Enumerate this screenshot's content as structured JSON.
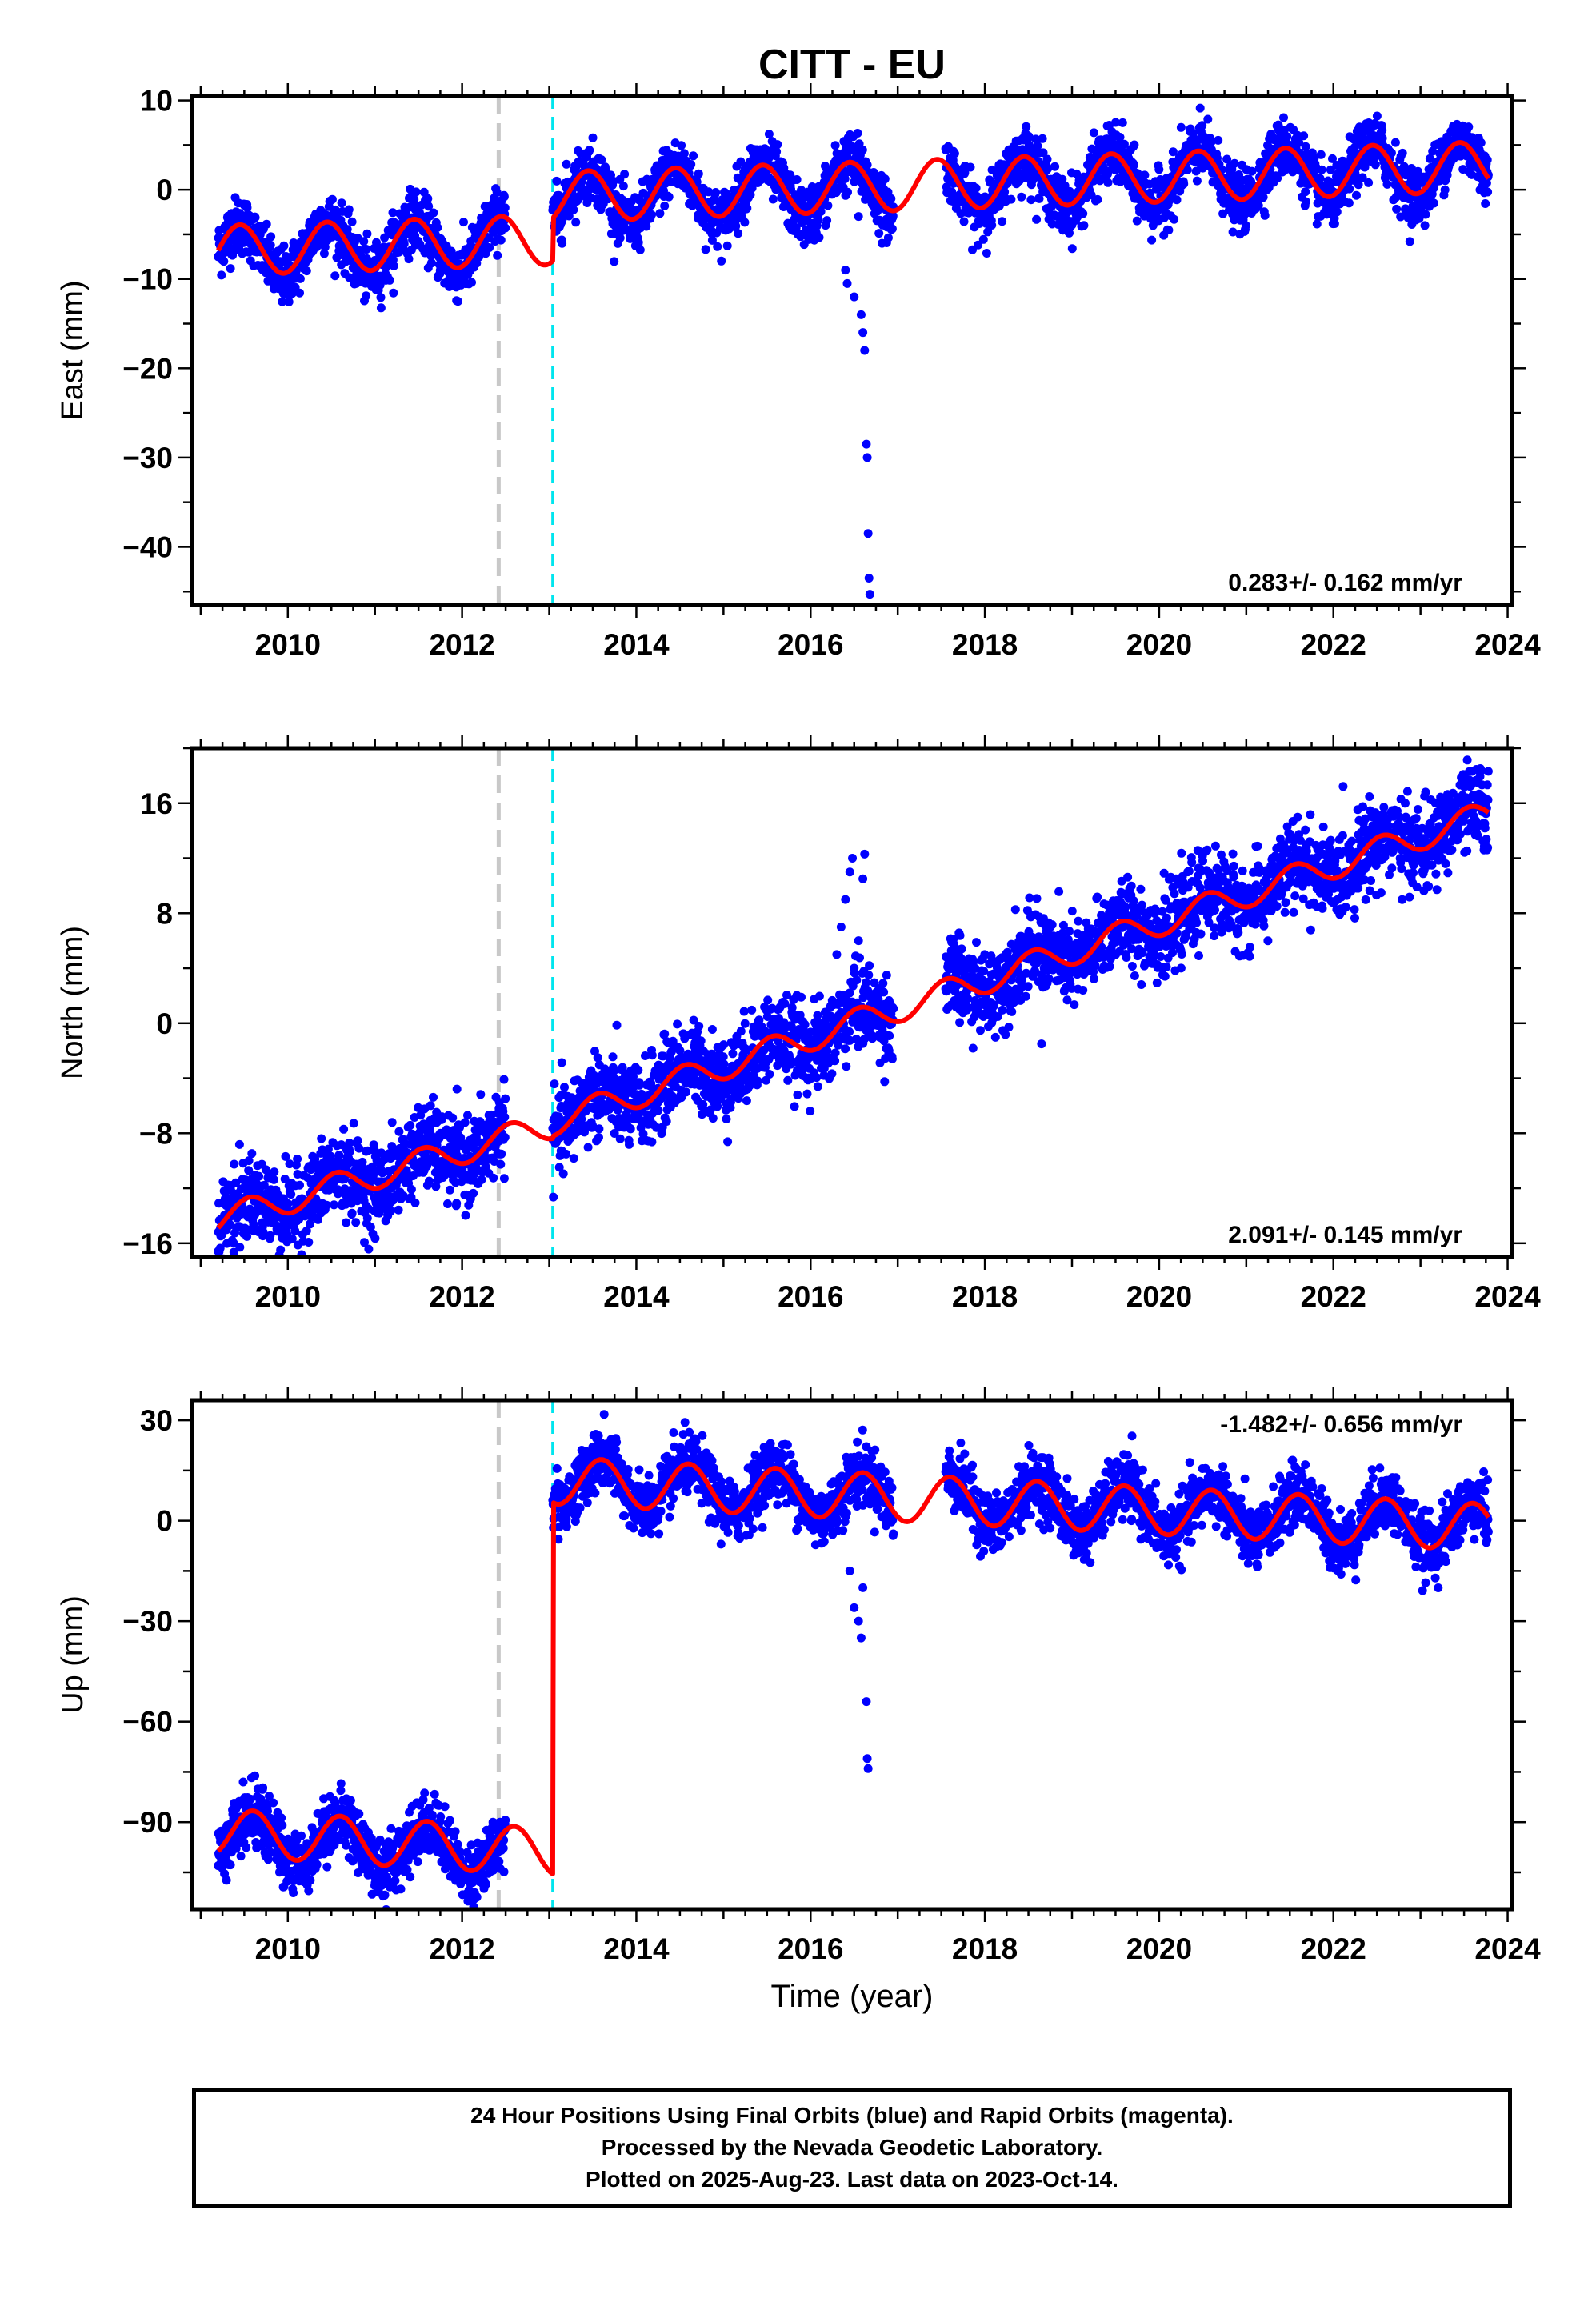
{
  "title": "CITT - EU",
  "xlabel": "Time (year)",
  "colors": {
    "final_orbits": "#0000ff",
    "model": "#ff0000",
    "antenna_change": "#c8c8c8",
    "equipment_change": "#00e5ee"
  },
  "footer": {
    "line1": "24 Hour Positions Using Final Orbits (blue) and Rapid Orbits (magenta).",
    "line2": "Processed by the Nevada Geodetic Laboratory.",
    "line3": "Plotted on 2025-Aug-23. Last data on 2023-Oct-14."
  },
  "chart_data": [
    {
      "type": "scatter",
      "panel": "east",
      "title": "CITT - EU",
      "xlabel": "",
      "ylabel": "East (mm)",
      "xlim": [
        2008.9,
        2024.05
      ],
      "ylim": [
        -46.5,
        10.5
      ],
      "xticks": [
        2010,
        2012,
        2014,
        2016,
        2018,
        2020,
        2022,
        2024
      ],
      "xtick_labels": [
        "2010",
        "2012",
        "2014",
        "2016",
        "2018",
        "2020",
        "2022",
        "2024"
      ],
      "yticks": [
        10,
        0,
        -10,
        -20,
        -30,
        -40
      ],
      "ytick_labels": [
        "10",
        "0",
        "−10",
        "−20",
        "−30",
        "−40"
      ],
      "ytick_minor_step": 5,
      "vlines": [
        2012.42,
        2013.04
      ],
      "rate_label": "0.283+/- 0.162 mm/yr",
      "rate_position": "bottom-right",
      "data_spans": [
        [
          2009.2,
          2012.5
        ],
        [
          2013.04,
          2016.95
        ],
        [
          2017.55,
          2023.78
        ]
      ],
      "series": [
        {
          "role": "final_orbits",
          "kind": "points",
          "trend_segments": [
            [
              2009.2,
              -7.0,
              2012.42,
              -6.0
            ],
            [
              2013.04,
              -1.0,
              2023.78,
              2.5
            ]
          ],
          "annual_amplitude": 3.0,
          "annual_peak": 0.45,
          "scatter": 1.6
        },
        {
          "role": "model",
          "kind": "line",
          "trend_segments": [
            [
              2009.2,
              -6.8,
              2012.42,
              -5.8
            ],
            [
              2013.04,
              -0.8,
              2023.78,
              2.6
            ]
          ],
          "annual_amplitude": 2.8,
          "annual_peak": 0.45
        }
      ],
      "outliers": [
        [
          2016.4,
          -9.0
        ],
        [
          2016.42,
          -10.5
        ],
        [
          2016.5,
          -12.0
        ],
        [
          2016.58,
          -14.0
        ],
        [
          2016.6,
          -16.0
        ],
        [
          2016.62,
          -18.0
        ],
        [
          2016.64,
          -28.5
        ],
        [
          2016.65,
          -30.0
        ],
        [
          2016.66,
          -38.5
        ],
        [
          2016.67,
          -43.5
        ],
        [
          2016.68,
          -45.3
        ],
        [
          2016.55,
          -3.0
        ]
      ]
    },
    {
      "type": "scatter",
      "panel": "north",
      "xlabel": "",
      "ylabel": "North (mm)",
      "xlim": [
        2008.9,
        2024.05
      ],
      "ylim": [
        -17,
        20
      ],
      "xticks": [
        2010,
        2012,
        2014,
        2016,
        2018,
        2020,
        2022,
        2024
      ],
      "xtick_labels": [
        "2010",
        "2012",
        "2014",
        "2016",
        "2018",
        "2020",
        "2022",
        "2024"
      ],
      "yticks": [
        16,
        8,
        0,
        -8,
        -16
      ],
      "ytick_labels": [
        "16",
        "8",
        "0",
        "−8",
        "−16"
      ],
      "ytick_minor_step": 4,
      "vlines": [
        2012.42,
        2013.04
      ],
      "rate_label": "2.091+/- 0.145 mm/yr",
      "rate_position": "bottom-right",
      "data_spans": [
        [
          2009.2,
          2012.5
        ],
        [
          2013.04,
          2016.95
        ],
        [
          2017.55,
          2023.78
        ]
      ],
      "series": [
        {
          "role": "final_orbits",
          "kind": "points",
          "trend_segments": [
            [
              2009.2,
              -14.3,
              2012.42,
              -8.5
            ],
            [
              2013.04,
              -7.2,
              2023.78,
              15.2
            ]
          ],
          "annual_amplitude": 1.0,
          "annual_peak": 0.55,
          "scatter": 1.5
        },
        {
          "role": "model",
          "kind": "line",
          "trend_segments": [
            [
              2009.2,
              -14.3,
              2012.42,
              -8.5
            ],
            [
              2013.04,
              -7.2,
              2023.78,
              15.2
            ]
          ],
          "annual_amplitude": 1.0,
          "annual_peak": 0.55
        }
      ],
      "outliers": [
        [
          2016.3,
          5.0
        ],
        [
          2016.35,
          7.0
        ],
        [
          2016.4,
          9.0
        ],
        [
          2016.45,
          11.0
        ],
        [
          2016.48,
          12.0
        ],
        [
          2016.6,
          10.5
        ],
        [
          2016.62,
          12.3
        ],
        [
          2016.55,
          6.0
        ],
        [
          2016.5,
          4.0
        ],
        [
          2016.85,
          0.0
        ],
        [
          2016.9,
          -2.0
        ],
        [
          2018.65,
          -1.5
        ]
      ]
    },
    {
      "type": "scatter",
      "panel": "up",
      "xlabel": "Time (year)",
      "ylabel": "Up (mm)",
      "xlim": [
        2008.9,
        2024.05
      ],
      "ylim": [
        -116,
        36
      ],
      "xticks": [
        2010,
        2012,
        2014,
        2016,
        2018,
        2020,
        2022,
        2024
      ],
      "xtick_labels": [
        "2010",
        "2012",
        "2014",
        "2016",
        "2018",
        "2020",
        "2022",
        "2024"
      ],
      "yticks": [
        30,
        0,
        -30,
        -60,
        -90
      ],
      "ytick_labels": [
        "30",
        "0",
        "−30",
        "−60",
        "−90"
      ],
      "ytick_minor_step": 15,
      "vlines": [
        2012.42,
        2013.04
      ],
      "rate_label": "-1.482+/- 0.656 mm/yr",
      "rate_position": "top-right",
      "data_spans": [
        [
          2009.2,
          2012.5
        ],
        [
          2013.04,
          2016.95
        ],
        [
          2017.55,
          2023.78
        ]
      ],
      "series": [
        {
          "role": "final_orbits",
          "kind": "points",
          "trend_segments": [
            [
              2009.2,
              -94,
              2012.42,
              -99
            ],
            [
              2013.04,
              12,
              2023.78,
              -2
            ]
          ],
          "annual_amplitude": 7.0,
          "annual_peak": 0.6,
          "scatter": 4.5
        },
        {
          "role": "model",
          "kind": "line",
          "trend_segments": [
            [
              2009.2,
              -93,
              2012.42,
              -98
            ],
            [
              2013.04,
              12,
              2023.78,
              -2
            ]
          ],
          "annual_amplitude": 7.0,
          "annual_peak": 0.6
        }
      ],
      "outliers": [
        [
          2016.5,
          -26
        ],
        [
          2016.55,
          -30
        ],
        [
          2016.58,
          -35
        ],
        [
          2016.64,
          -54
        ],
        [
          2016.65,
          -71
        ],
        [
          2016.66,
          -74
        ],
        [
          2016.45,
          -15
        ],
        [
          2016.6,
          -20
        ]
      ]
    }
  ]
}
